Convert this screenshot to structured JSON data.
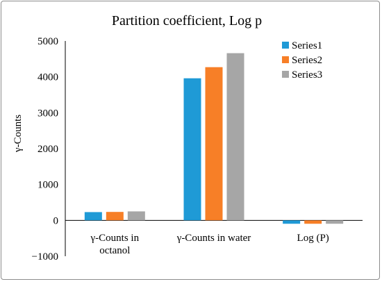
{
  "chart_data": {
    "type": "bar",
    "title": "Partition coefficient, Log p",
    "ylabel": "γ-Counts",
    "xlabel": "",
    "categories": [
      [
        "γ-Counts in",
        "octanol"
      ],
      [
        "γ-Counts in water"
      ],
      [
        "Log (P)"
      ]
    ],
    "series": [
      {
        "name": "Series1",
        "color": "#1f9ad6",
        "values": [
          230,
          3960,
          -95
        ]
      },
      {
        "name": "Series2",
        "color": "#f77f27",
        "values": [
          235,
          4270,
          -95
        ]
      },
      {
        "name": "Series3",
        "color": "#a6a6a6",
        "values": [
          250,
          4660,
          -95
        ]
      }
    ],
    "ylim": [
      -1000,
      5000
    ],
    "yticks": [
      5000,
      4000,
      3000,
      2000,
      1000,
      0,
      -1000
    ],
    "ytick_labels": [
      "5000",
      "4000",
      "3000",
      "2000",
      "1000",
      "0",
      "−1000"
    ],
    "grid": false,
    "legend_position": "top-right"
  }
}
